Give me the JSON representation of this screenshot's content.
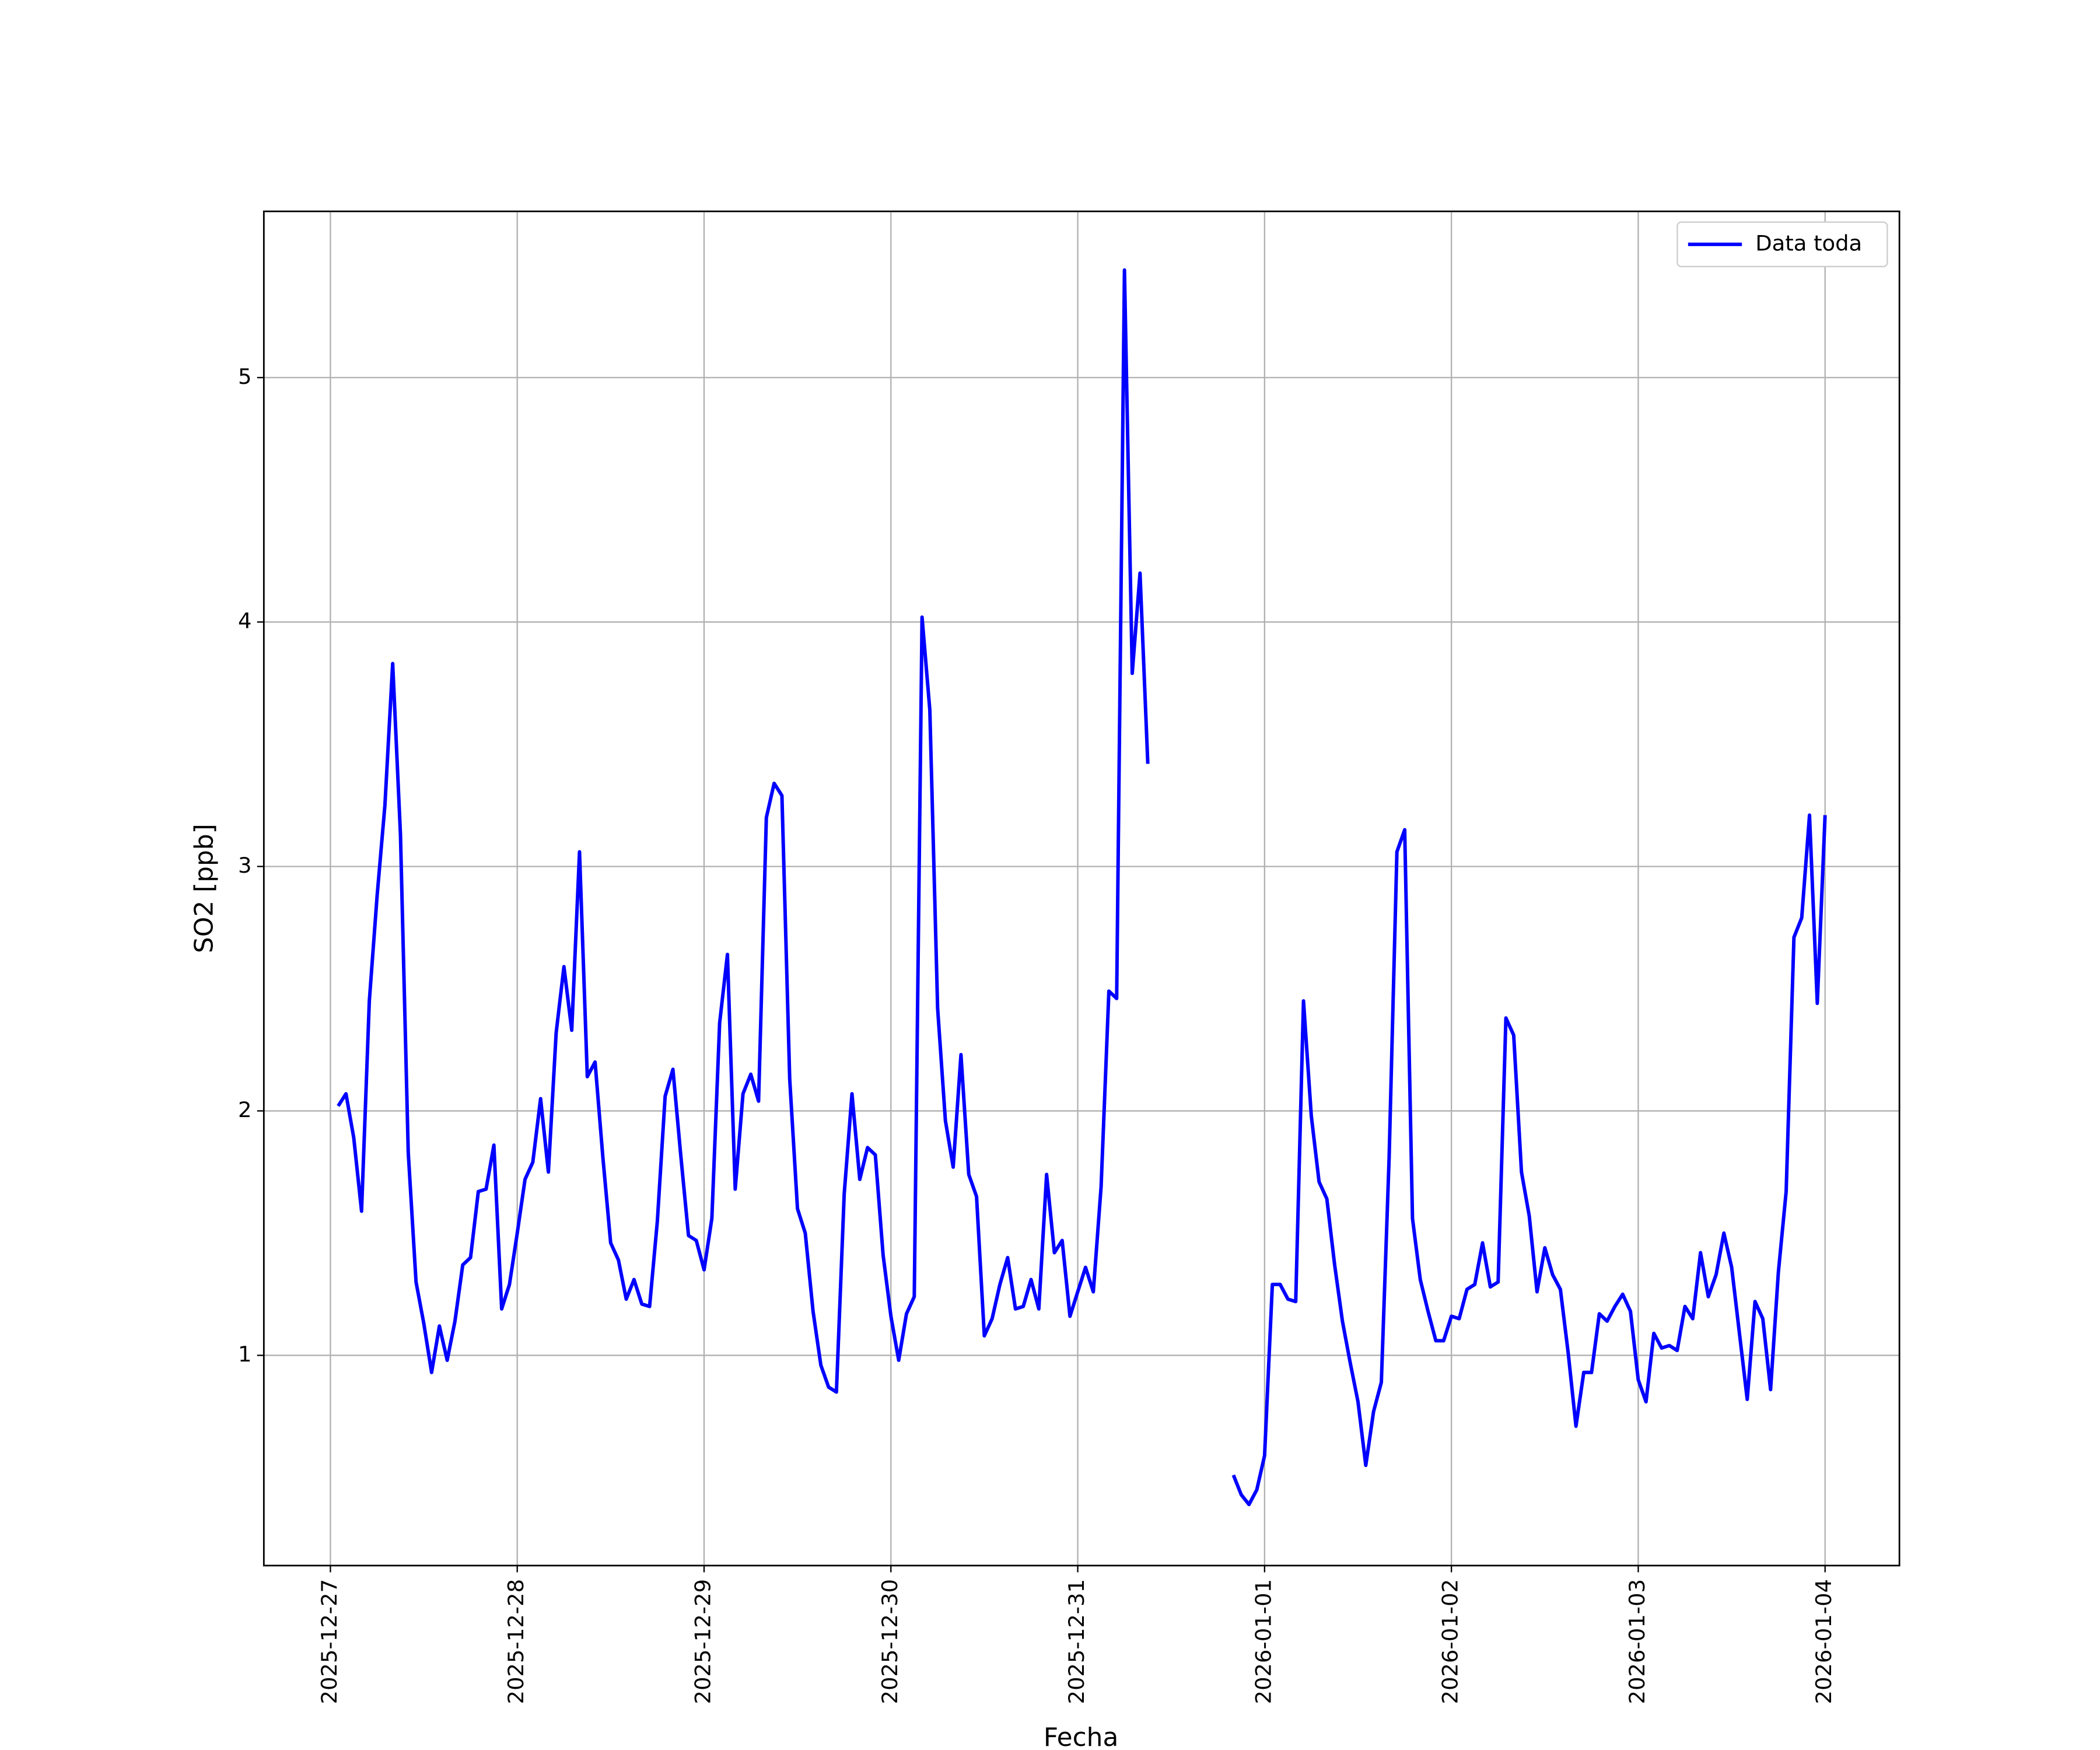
{
  "chart_data": {
    "type": "line",
    "xlabel": "Fecha",
    "ylabel": "SO2 [ppb]",
    "x": [
      "2025-12-27 01:00",
      "2025-12-27 02:00",
      "2025-12-27 03:00",
      "2025-12-27 04:00",
      "2025-12-27 05:00",
      "2025-12-27 06:00",
      "2025-12-27 07:00",
      "2025-12-27 08:00",
      "2025-12-27 09:00",
      "2025-12-27 10:00",
      "2025-12-27 11:00",
      "2025-12-27 12:00",
      "2025-12-27 13:00",
      "2025-12-27 14:00",
      "2025-12-27 15:00",
      "2025-12-27 16:00",
      "2025-12-27 17:00",
      "2025-12-27 18:00",
      "2025-12-27 19:00",
      "2025-12-27 20:00",
      "2025-12-27 21:00",
      "2025-12-27 22:00",
      "2025-12-27 23:00",
      "2025-12-28 00:00",
      "2025-12-28 01:00",
      "2025-12-28 02:00",
      "2025-12-28 03:00",
      "2025-12-28 04:00",
      "2025-12-28 05:00",
      "2025-12-28 06:00",
      "2025-12-28 07:00",
      "2025-12-28 08:00",
      "2025-12-28 09:00",
      "2025-12-28 10:00",
      "2025-12-28 11:00",
      "2025-12-28 12:00",
      "2025-12-28 13:00",
      "2025-12-28 14:00",
      "2025-12-28 15:00",
      "2025-12-28 16:00",
      "2025-12-28 17:00",
      "2025-12-28 18:00",
      "2025-12-28 19:00",
      "2025-12-28 20:00",
      "2025-12-28 21:00",
      "2025-12-28 22:00",
      "2025-12-28 23:00",
      "2025-12-29 00:00",
      "2025-12-29 01:00",
      "2025-12-29 02:00",
      "2025-12-29 03:00",
      "2025-12-29 04:00",
      "2025-12-29 05:00",
      "2025-12-29 06:00",
      "2025-12-29 07:00",
      "2025-12-29 08:00",
      "2025-12-29 09:00",
      "2025-12-29 10:00",
      "2025-12-29 11:00",
      "2025-12-29 12:00",
      "2025-12-29 13:00",
      "2025-12-29 14:00",
      "2025-12-29 15:00",
      "2025-12-29 16:00",
      "2025-12-29 17:00",
      "2025-12-29 18:00",
      "2025-12-29 19:00",
      "2025-12-29 20:00",
      "2025-12-29 21:00",
      "2025-12-29 22:00",
      "2025-12-29 23:00",
      "2025-12-30 00:00",
      "2025-12-30 01:00",
      "2025-12-30 02:00",
      "2025-12-30 03:00",
      "2025-12-30 04:00",
      "2025-12-30 05:00",
      "2025-12-30 06:00",
      "2025-12-30 07:00",
      "2025-12-30 08:00",
      "2025-12-30 09:00",
      "2025-12-30 10:00",
      "2025-12-30 11:00",
      "2025-12-30 12:00",
      "2025-12-30 13:00",
      "2025-12-30 14:00",
      "2025-12-30 15:00",
      "2025-12-30 16:00",
      "2025-12-30 17:00",
      "2025-12-30 18:00",
      "2025-12-30 19:00",
      "2025-12-30 20:00",
      "2025-12-30 21:00",
      "2025-12-30 22:00",
      "2025-12-30 23:00",
      "2025-12-31 00:00",
      "2025-12-31 01:00",
      "2025-12-31 02:00",
      "2025-12-31 03:00",
      "2025-12-31 04:00",
      "2025-12-31 05:00",
      "2025-12-31 06:00",
      "2025-12-31 07:00",
      "2025-12-31 08:00",
      "2025-12-31 09:00",
      "2025-12-31 10:00",
      "2025-12-31 11:00",
      "2025-12-31 12:00",
      "2025-12-31 13:00",
      "2025-12-31 14:00",
      "2025-12-31 15:00",
      "2025-12-31 16:00",
      "2025-12-31 17:00",
      "2025-12-31 18:00",
      "2025-12-31 19:00",
      "2025-12-31 20:00",
      "2025-12-31 21:00",
      "2025-12-31 22:00",
      "2025-12-31 23:00",
      "2026-01-01 00:00",
      "2026-01-01 01:00",
      "2026-01-01 02:00",
      "2026-01-01 03:00",
      "2026-01-01 04:00",
      "2026-01-01 05:00",
      "2026-01-01 06:00",
      "2026-01-01 07:00",
      "2026-01-01 08:00",
      "2026-01-01 09:00",
      "2026-01-01 10:00",
      "2026-01-01 11:00",
      "2026-01-01 12:00",
      "2026-01-01 13:00",
      "2026-01-01 14:00",
      "2026-01-01 15:00",
      "2026-01-01 16:00",
      "2026-01-01 17:00",
      "2026-01-01 18:00",
      "2026-01-01 19:00",
      "2026-01-01 20:00",
      "2026-01-01 21:00",
      "2026-01-01 22:00",
      "2026-01-01 23:00",
      "2026-01-02 00:00",
      "2026-01-02 01:00",
      "2026-01-02 02:00",
      "2026-01-02 03:00",
      "2026-01-02 04:00",
      "2026-01-02 05:00",
      "2026-01-02 06:00",
      "2026-01-02 07:00",
      "2026-01-02 08:00",
      "2026-01-02 09:00",
      "2026-01-02 10:00",
      "2026-01-02 11:00",
      "2026-01-02 12:00",
      "2026-01-02 13:00",
      "2026-01-02 14:00",
      "2026-01-02 15:00",
      "2026-01-02 16:00",
      "2026-01-02 17:00",
      "2026-01-02 18:00",
      "2026-01-02 19:00",
      "2026-01-02 20:00",
      "2026-01-02 21:00",
      "2026-01-02 22:00",
      "2026-01-02 23:00",
      "2026-01-03 00:00",
      "2026-01-03 01:00",
      "2026-01-03 02:00",
      "2026-01-03 03:00",
      "2026-01-03 04:00",
      "2026-01-03 05:00",
      "2026-01-03 06:00",
      "2026-01-03 07:00",
      "2026-01-03 08:00",
      "2026-01-03 09:00",
      "2026-01-03 10:00",
      "2026-01-03 11:00",
      "2026-01-03 12:00",
      "2026-01-03 13:00",
      "2026-01-03 14:00",
      "2026-01-03 15:00",
      "2026-01-03 16:00",
      "2026-01-03 17:00",
      "2026-01-03 18:00",
      "2026-01-03 19:00",
      "2026-01-03 20:00",
      "2026-01-03 21:00",
      "2026-01-03 22:00",
      "2026-01-03 23:00",
      "2026-01-04 00:00"
    ],
    "series": [
      {
        "name": "Data toda",
        "color": "#0000ff",
        "values": [
          2.02,
          2.07,
          1.89,
          1.59,
          2.45,
          2.88,
          3.25,
          3.83,
          3.13,
          1.83,
          1.3,
          1.13,
          0.93,
          1.12,
          0.98,
          1.14,
          1.37,
          1.4,
          1.67,
          1.68,
          1.86,
          1.19,
          1.29,
          1.5,
          1.72,
          1.79,
          2.05,
          1.75,
          2.32,
          2.59,
          2.33,
          3.06,
          2.14,
          2.2,
          1.81,
          1.46,
          1.39,
          1.23,
          1.31,
          1.21,
          1.2,
          1.55,
          2.06,
          2.17,
          1.82,
          1.49,
          1.47,
          1.35,
          1.56,
          2.36,
          2.64,
          1.68,
          2.07,
          2.15,
          2.04,
          3.2,
          3.34,
          3.29,
          2.13,
          1.6,
          1.5,
          1.18,
          0.96,
          0.87,
          0.85,
          1.66,
          2.07,
          1.72,
          1.85,
          1.82,
          1.41,
          1.16,
          0.98,
          1.17,
          1.24,
          4.02,
          3.64,
          2.42,
          1.96,
          1.77,
          2.23,
          1.74,
          1.65,
          1.08,
          1.15,
          1.29,
          1.4,
          1.19,
          1.2,
          1.31,
          1.19,
          1.74,
          1.42,
          1.47,
          1.16,
          1.26,
          1.36,
          1.26,
          1.69,
          2.49,
          2.46,
          5.44,
          3.79,
          4.2,
          3.42,
          null,
          null,
          null,
          null,
          null,
          null,
          null,
          null,
          null,
          null,
          0.51,
          0.43,
          0.39,
          0.45,
          0.59,
          1.29,
          1.29,
          1.23,
          1.22,
          2.45,
          1.98,
          1.71,
          1.64,
          1.37,
          1.14,
          0.97,
          0.81,
          0.55,
          0.77,
          0.89,
          1.81,
          3.06,
          3.15,
          1.56,
          1.31,
          1.18,
          1.06,
          1.06,
          1.16,
          1.15,
          1.27,
          1.29,
          1.46,
          1.28,
          1.3,
          2.38,
          2.31,
          1.75,
          1.57,
          1.26,
          1.44,
          1.33,
          1.27,
          1.01,
          0.71,
          0.93,
          0.93,
          1.17,
          1.14,
          1.2,
          1.25,
          1.18,
          0.9,
          0.81,
          1.09,
          1.03,
          1.04,
          1.02,
          1.2,
          1.15,
          1.42,
          1.24,
          1.33,
          1.5,
          1.36,
          1.09,
          0.82,
          1.22,
          1.15,
          0.86,
          1.34,
          1.67,
          2.71,
          2.79,
          3.21,
          2.44,
          3.21
        ]
      }
    ],
    "xlim": [
      "2025-12-26 15:27",
      "2026-01-04 09:33"
    ],
    "xticks": [
      "2025-12-27",
      "2025-12-28",
      "2025-12-29",
      "2025-12-30",
      "2025-12-31",
      "2026-01-01",
      "2026-01-02",
      "2026-01-03",
      "2026-01-04"
    ],
    "ylim": [
      0.14,
      5.68
    ],
    "yticks": [
      1,
      2,
      3,
      4,
      5
    ],
    "grid": true,
    "legend": "upper right"
  }
}
